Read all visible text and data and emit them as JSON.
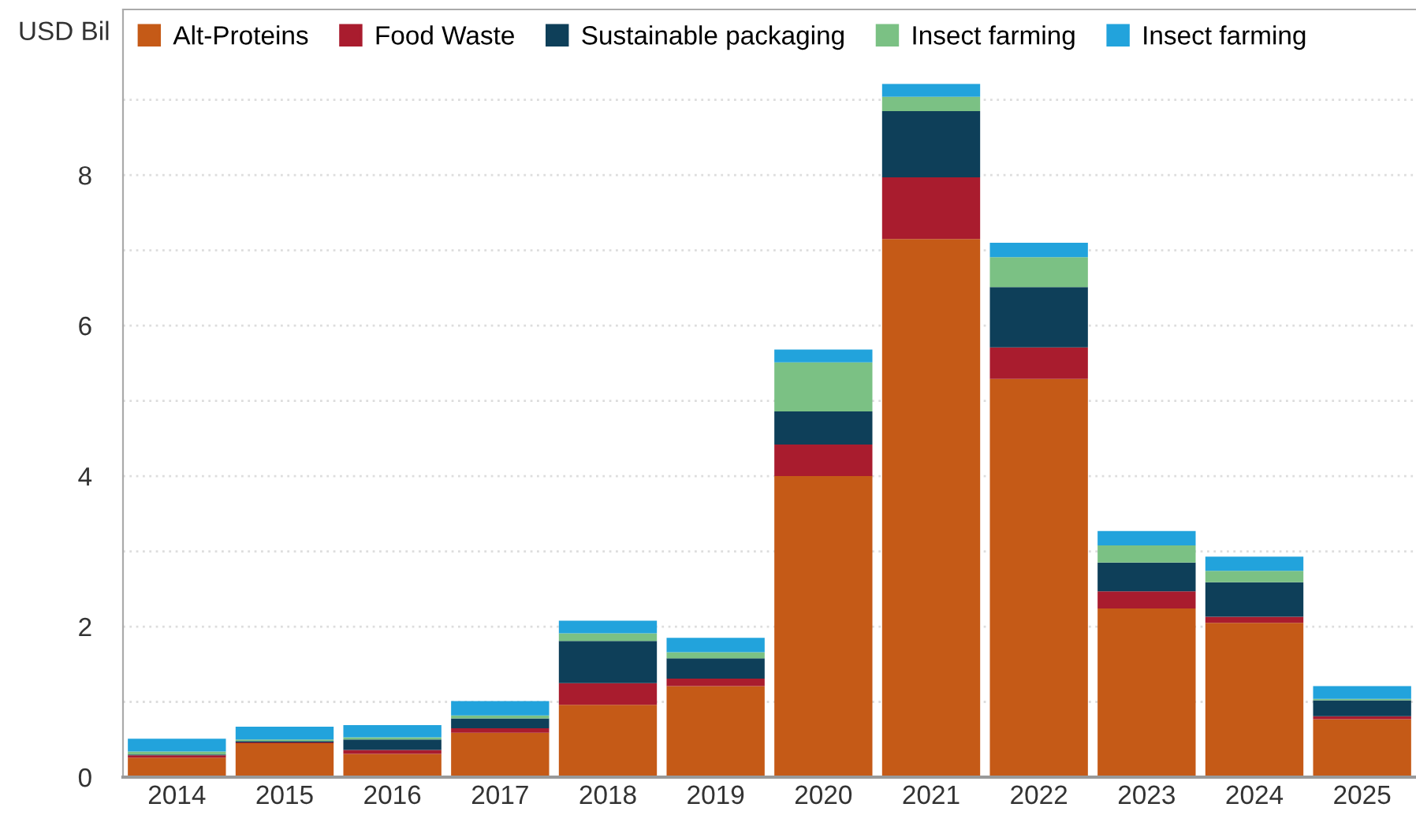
{
  "chart_data": {
    "type": "bar",
    "stacked": true,
    "ylabel": "USD Bil",
    "categories": [
      "2014",
      "2015",
      "2016",
      "2017",
      "2018",
      "2019",
      "2020",
      "2021",
      "2022",
      "2023",
      "2024",
      "2025"
    ],
    "series": [
      {
        "name": "Alt-Proteins",
        "color": "#c55a17",
        "values": [
          0.26,
          0.45,
          0.31,
          0.59,
          0.96,
          1.21,
          4.0,
          7.15,
          5.29,
          2.24,
          2.05,
          0.77
        ]
      },
      {
        "name": "Food Waste",
        "color": "#a91c2e",
        "values": [
          0.03,
          0.01,
          0.05,
          0.06,
          0.29,
          0.1,
          0.42,
          0.82,
          0.42,
          0.23,
          0.08,
          0.04
        ]
      },
      {
        "name": "Sustainable packaging",
        "color": "#0e3f59",
        "values": [
          0.01,
          0.02,
          0.14,
          0.13,
          0.56,
          0.27,
          0.44,
          0.88,
          0.8,
          0.38,
          0.46,
          0.21
        ]
      },
      {
        "name": "Insect farming",
        "color": "#7bc184",
        "values": [
          0.04,
          0.02,
          0.03,
          0.04,
          0.1,
          0.08,
          0.65,
          0.19,
          0.4,
          0.23,
          0.15,
          0.02
        ]
      },
      {
        "name": "Insect farming",
        "color": "#22a3dc",
        "values": [
          0.17,
          0.17,
          0.16,
          0.19,
          0.17,
          0.19,
          0.17,
          0.17,
          0.19,
          0.19,
          0.19,
          0.17
        ]
      }
    ],
    "ylim": [
      0,
      10.2
    ],
    "yticks": [
      0,
      {
        "value": 1,
        "label": null
      },
      2,
      {
        "value": 3,
        "label": null
      },
      4,
      {
        "value": 5,
        "label": null
      },
      6,
      {
        "value": 7,
        "label": null
      },
      8,
      {
        "value": 9,
        "label": null
      }
    ],
    "grid": "y",
    "legend": "top left"
  }
}
